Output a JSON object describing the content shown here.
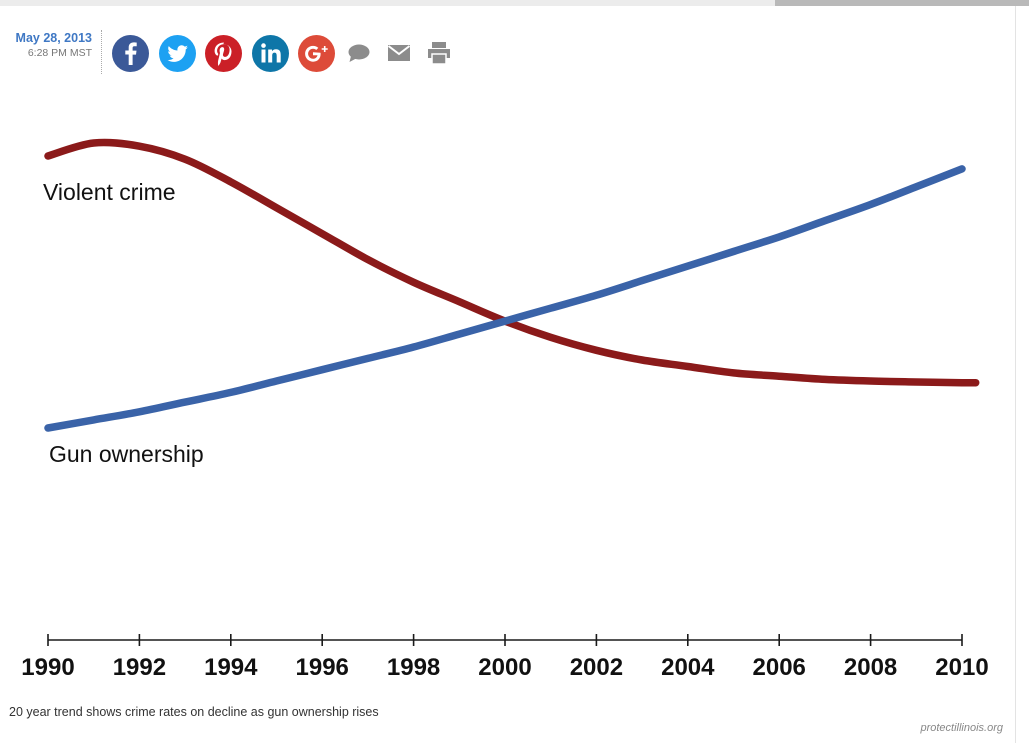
{
  "article": {
    "date": "May 28, 2013",
    "time": "6:28 PM MST",
    "caption": "20 year trend shows crime rates on decline as gun ownership rises",
    "source": "protectillinois.org"
  },
  "share": {
    "buttons": [
      {
        "icon": "facebook-icon",
        "color": "#3b5998"
      },
      {
        "icon": "twitter-icon",
        "color": "#1da1f2"
      },
      {
        "icon": "pinterest-icon",
        "color": "#cb2027"
      },
      {
        "icon": "linkedin-icon",
        "color": "#0e76a8"
      },
      {
        "icon": "google-plus-icon",
        "color": "#dd4b39"
      },
      {
        "icon": "comment-icon",
        "color": "#8c8c8c"
      },
      {
        "icon": "email-icon",
        "color": "#8c8c8c"
      },
      {
        "icon": "print-icon",
        "color": "#8c8c8c"
      }
    ]
  },
  "chart_data": {
    "type": "line",
    "title": "",
    "xlabel": "",
    "ylabel": "",
    "x_ticks": [
      "1990",
      "1992",
      "1994",
      "1996",
      "1998",
      "2000",
      "2002",
      "2004",
      "2006",
      "2008",
      "2010"
    ],
    "xlim": [
      1990,
      2010.3
    ],
    "ylim": [
      0,
      100
    ],
    "y_axis_visible": false,
    "grid": false,
    "legend": "inline labels",
    "series": [
      {
        "name": "Violent crime",
        "color": "#8b1a1a",
        "x": [
          1990,
          1991,
          1992,
          1993,
          1994,
          1995,
          1996,
          1997,
          1998,
          1999,
          2000,
          2001,
          2002,
          2003,
          2004,
          2005,
          2006,
          2007,
          2008,
          2009,
          2010,
          2010.3
        ],
        "y": [
          94,
          98,
          97,
          93,
          86,
          78,
          70,
          62,
          55,
          49,
          43,
          38,
          34,
          31,
          29,
          27,
          26,
          25,
          24.5,
          24.2,
          24,
          24
        ]
      },
      {
        "name": "Gun ownership",
        "color": "#3a63a8",
        "x": [
          1990,
          1991,
          1992,
          1993,
          1994,
          1995,
          1996,
          1997,
          1998,
          1999,
          2000,
          2001,
          2002,
          2003,
          2004,
          2005,
          2006,
          2007,
          2008,
          2009,
          2010
        ],
        "y": [
          10,
          12.5,
          15,
          18,
          21,
          24.5,
          28,
          31.5,
          35,
          39,
          43,
          47,
          51,
          55.5,
          60,
          64.5,
          69,
          74,
          79,
          84.5,
          90
        ]
      }
    ]
  }
}
